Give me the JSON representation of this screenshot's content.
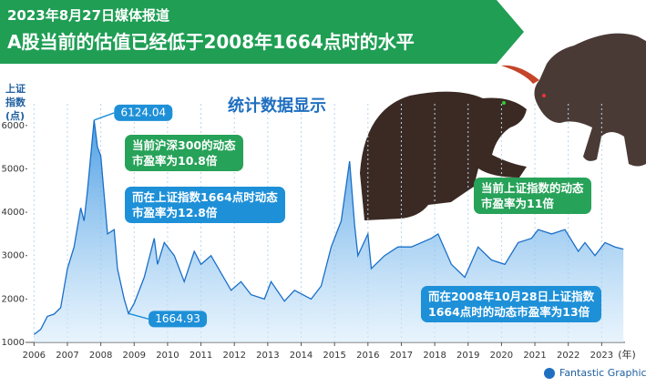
{
  "chart_data": {
    "type": "area",
    "title": [
      "2023年8月27日媒体报道",
      "A股当前的估值已经低于2008年1664点时的水平"
    ],
    "subtitle": "统计数据显示",
    "y_label": [
      "上证",
      "指数",
      "(点)"
    ],
    "x_unit": "(年)",
    "source": "Fantastic Graphics",
    "x": [
      2006.0,
      2006.2,
      2006.4,
      2006.6,
      2006.8,
      2007.0,
      2007.2,
      2007.4,
      2007.5,
      2007.6,
      2007.8,
      2007.9,
      2008.0,
      2008.2,
      2008.4,
      2008.5,
      2008.7,
      2008.83,
      2009.0,
      2009.3,
      2009.6,
      2009.7,
      2009.9,
      2010.2,
      2010.5,
      2010.8,
      2011.0,
      2011.3,
      2011.6,
      2011.9,
      2012.2,
      2012.5,
      2012.9,
      2013.1,
      2013.5,
      2013.8,
      2014.3,
      2014.6,
      2014.9,
      2015.2,
      2015.45,
      2015.6,
      2015.7,
      2016.0,
      2016.1,
      2016.5,
      2016.9,
      2017.3,
      2017.9,
      2018.1,
      2018.5,
      2018.9,
      2019.3,
      2019.7,
      2020.1,
      2020.5,
      2020.9,
      2021.1,
      2021.5,
      2021.9,
      2022.3,
      2022.5,
      2022.8,
      2023.1,
      2023.4,
      2023.65
    ],
    "series": [
      {
        "name": "上证指数",
        "color": "#1a6fc8",
        "values": [
          1180,
          1300,
          1600,
          1650,
          1800,
          2700,
          3200,
          4100,
          3800,
          4500,
          6124.04,
          5500,
          5300,
          3500,
          3600,
          2700,
          2000,
          1664.93,
          1900,
          2500,
          3400,
          2800,
          3300,
          3000,
          2400,
          3100,
          2800,
          3000,
          2600,
          2200,
          2400,
          2100,
          2000,
          2400,
          1950,
          2200,
          2000,
          2300,
          3200,
          3800,
          5178,
          3700,
          3000,
          3500,
          2700,
          3000,
          3200,
          3200,
          3400,
          3500,
          2800,
          2500,
          3200,
          2900,
          2800,
          3300,
          3400,
          3600,
          3500,
          3600,
          3100,
          3300,
          3000,
          3300,
          3200,
          3150
        ]
      }
    ],
    "xlim": [
      2005.8,
      2023.7
    ],
    "ylim": [
      1000,
      6500
    ],
    "xticks": [
      2006,
      2007,
      2008,
      2009,
      2010,
      2011,
      2012,
      2013,
      2014,
      2015,
      2016,
      2017,
      2018,
      2019,
      2020,
      2021,
      2022,
      2023
    ],
    "yticks": [
      1000,
      2000,
      3000,
      4000,
      5000,
      6000
    ],
    "grid": true,
    "callouts": [
      {
        "lines": [
          "当前沪深300的动态",
          "市盈率为10.8倍"
        ],
        "color": "green"
      },
      {
        "lines": [
          "而在上证指数1664点时动态",
          "市盈率为12.8倍"
        ],
        "color": "blue"
      },
      {
        "lines": [
          "当前上证指数的动态",
          "市盈率为11倍"
        ],
        "color": "green"
      },
      {
        "lines": [
          "而在2008年10月28日上证指数",
          "1664点时的动态市盈率为13倍"
        ],
        "color": "blue"
      }
    ]
  }
}
